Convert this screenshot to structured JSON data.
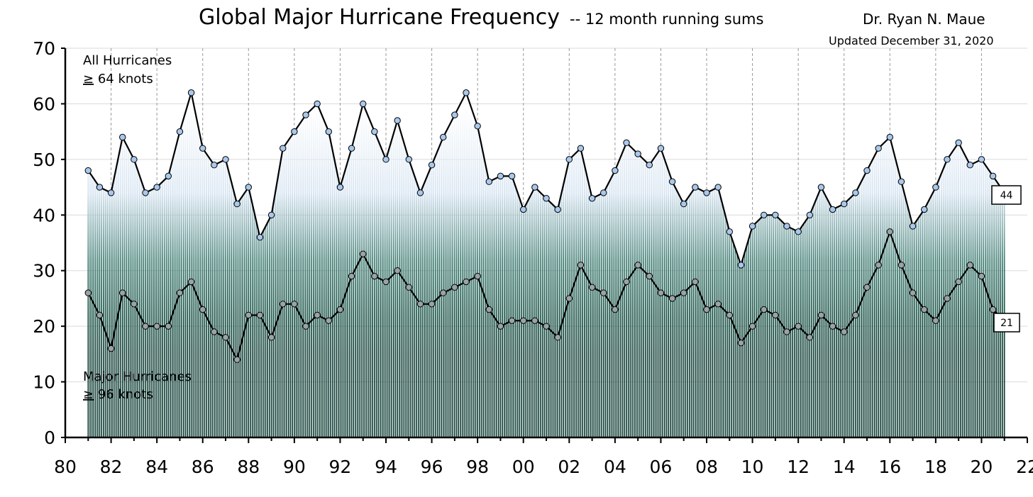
{
  "title": "Global Major Hurricane Frequency",
  "subtitle": "-- 12 month running sums",
  "author": "Dr. Ryan N. Maue",
  "updated": "Updated December 31, 2020",
  "chart_data": {
    "type": "line",
    "x_unit": "year",
    "ylim": [
      0,
      70
    ],
    "xlim": [
      1980,
      2022
    ],
    "y_ticks": [
      "0",
      "10",
      "20",
      "30",
      "40",
      "50",
      "60",
      "70"
    ],
    "x_ticks": [
      "80",
      "82",
      "84",
      "86",
      "88",
      "90",
      "92",
      "94",
      "96",
      "98",
      "00",
      "02",
      "04",
      "06",
      "08",
      "10",
      "12",
      "14",
      "16",
      "18",
      "20",
      "22"
    ],
    "vertical_grid_every_years": 2,
    "horizontal_grid": true,
    "series": [
      {
        "name": "All Hurricanes",
        "threshold_prefix": "≥",
        "threshold_text": " 64 knots",
        "color": "#a9c8ec",
        "last_value_label": "44",
        "points": [
          [
            1981.0,
            48
          ],
          [
            1981.5,
            45
          ],
          [
            1982.0,
            44
          ],
          [
            1982.5,
            54
          ],
          [
            1983.0,
            50
          ],
          [
            1983.5,
            44
          ],
          [
            1984.0,
            45
          ],
          [
            1984.5,
            47
          ],
          [
            1985.0,
            55
          ],
          [
            1985.5,
            62
          ],
          [
            1986.0,
            52
          ],
          [
            1986.5,
            49
          ],
          [
            1987.0,
            50
          ],
          [
            1987.5,
            42
          ],
          [
            1988.0,
            45
          ],
          [
            1988.5,
            36
          ],
          [
            1989.0,
            40
          ],
          [
            1989.5,
            52
          ],
          [
            1990.0,
            55
          ],
          [
            1990.5,
            58
          ],
          [
            1991.0,
            60
          ],
          [
            1991.5,
            55
          ],
          [
            1992.0,
            45
          ],
          [
            1992.5,
            52
          ],
          [
            1993.0,
            60
          ],
          [
            1993.5,
            55
          ],
          [
            1994.0,
            50
          ],
          [
            1994.5,
            57
          ],
          [
            1995.0,
            50
          ],
          [
            1995.5,
            44
          ],
          [
            1996.0,
            49
          ],
          [
            1996.5,
            54
          ],
          [
            1997.0,
            58
          ],
          [
            1997.5,
            62
          ],
          [
            1998.0,
            56
          ],
          [
            1998.5,
            46
          ],
          [
            1999.0,
            47
          ],
          [
            1999.5,
            47
          ],
          [
            2000.0,
            41
          ],
          [
            2000.5,
            45
          ],
          [
            2001.0,
            43
          ],
          [
            2001.5,
            41
          ],
          [
            2002.0,
            50
          ],
          [
            2002.5,
            52
          ],
          [
            2003.0,
            43
          ],
          [
            2003.5,
            44
          ],
          [
            2004.0,
            48
          ],
          [
            2004.5,
            53
          ],
          [
            2005.0,
            51
          ],
          [
            2005.5,
            49
          ],
          [
            2006.0,
            52
          ],
          [
            2006.5,
            46
          ],
          [
            2007.0,
            42
          ],
          [
            2007.5,
            45
          ],
          [
            2008.0,
            44
          ],
          [
            2008.5,
            45
          ],
          [
            2009.0,
            37
          ],
          [
            2009.5,
            31
          ],
          [
            2010.0,
            38
          ],
          [
            2010.5,
            40
          ],
          [
            2011.0,
            40
          ],
          [
            2011.5,
            38
          ],
          [
            2012.0,
            37
          ],
          [
            2012.5,
            40
          ],
          [
            2013.0,
            45
          ],
          [
            2013.5,
            41
          ],
          [
            2014.0,
            42
          ],
          [
            2014.5,
            44
          ],
          [
            2015.0,
            48
          ],
          [
            2015.5,
            52
          ],
          [
            2016.0,
            54
          ],
          [
            2016.5,
            46
          ],
          [
            2017.0,
            38
          ],
          [
            2017.5,
            41
          ],
          [
            2018.0,
            45
          ],
          [
            2018.5,
            50
          ],
          [
            2019.0,
            53
          ],
          [
            2019.5,
            49
          ],
          [
            2020.0,
            50
          ],
          [
            2020.5,
            47
          ],
          [
            2021.0,
            44
          ]
        ]
      },
      {
        "name": "Major Hurricanes",
        "threshold_prefix": "≥",
        "threshold_text": " 96 knots",
        "color": "#9aa3a6",
        "last_value_label": "21",
        "points": [
          [
            1981.0,
            26
          ],
          [
            1981.5,
            22
          ],
          [
            1982.0,
            16
          ],
          [
            1982.5,
            26
          ],
          [
            1983.0,
            24
          ],
          [
            1983.5,
            20
          ],
          [
            1984.0,
            20
          ],
          [
            1984.5,
            20
          ],
          [
            1985.0,
            26
          ],
          [
            1985.5,
            28
          ],
          [
            1986.0,
            23
          ],
          [
            1986.5,
            19
          ],
          [
            1987.0,
            18
          ],
          [
            1987.5,
            14
          ],
          [
            1988.0,
            22
          ],
          [
            1988.5,
            22
          ],
          [
            1989.0,
            18
          ],
          [
            1989.5,
            24
          ],
          [
            1990.0,
            24
          ],
          [
            1990.5,
            20
          ],
          [
            1991.0,
            22
          ],
          [
            1991.5,
            21
          ],
          [
            1992.0,
            23
          ],
          [
            1992.5,
            29
          ],
          [
            1993.0,
            33
          ],
          [
            1993.5,
            29
          ],
          [
            1994.0,
            28
          ],
          [
            1994.5,
            30
          ],
          [
            1995.0,
            27
          ],
          [
            1995.5,
            24
          ],
          [
            1996.0,
            24
          ],
          [
            1996.5,
            26
          ],
          [
            1997.0,
            27
          ],
          [
            1997.5,
            28
          ],
          [
            1998.0,
            29
          ],
          [
            1998.5,
            23
          ],
          [
            1999.0,
            20
          ],
          [
            1999.5,
            21
          ],
          [
            2000.0,
            21
          ],
          [
            2000.5,
            21
          ],
          [
            2001.0,
            20
          ],
          [
            2001.5,
            18
          ],
          [
            2002.0,
            25
          ],
          [
            2002.5,
            31
          ],
          [
            2003.0,
            27
          ],
          [
            2003.5,
            26
          ],
          [
            2004.0,
            23
          ],
          [
            2004.5,
            28
          ],
          [
            2005.0,
            31
          ],
          [
            2005.5,
            29
          ],
          [
            2006.0,
            26
          ],
          [
            2006.5,
            25
          ],
          [
            2007.0,
            26
          ],
          [
            2007.5,
            28
          ],
          [
            2008.0,
            23
          ],
          [
            2008.5,
            24
          ],
          [
            2009.0,
            22
          ],
          [
            2009.5,
            17
          ],
          [
            2010.0,
            20
          ],
          [
            2010.5,
            23
          ],
          [
            2011.0,
            22
          ],
          [
            2011.5,
            19
          ],
          [
            2012.0,
            20
          ],
          [
            2012.5,
            18
          ],
          [
            2013.0,
            22
          ],
          [
            2013.5,
            20
          ],
          [
            2014.0,
            19
          ],
          [
            2014.5,
            22
          ],
          [
            2015.0,
            27
          ],
          [
            2015.5,
            31
          ],
          [
            2016.0,
            37
          ],
          [
            2016.5,
            31
          ],
          [
            2017.0,
            26
          ],
          [
            2017.5,
            23
          ],
          [
            2018.0,
            21
          ],
          [
            2018.5,
            25
          ],
          [
            2019.0,
            28
          ],
          [
            2019.5,
            31
          ],
          [
            2020.0,
            29
          ],
          [
            2020.5,
            23
          ],
          [
            2021.0,
            21
          ]
        ]
      }
    ]
  }
}
